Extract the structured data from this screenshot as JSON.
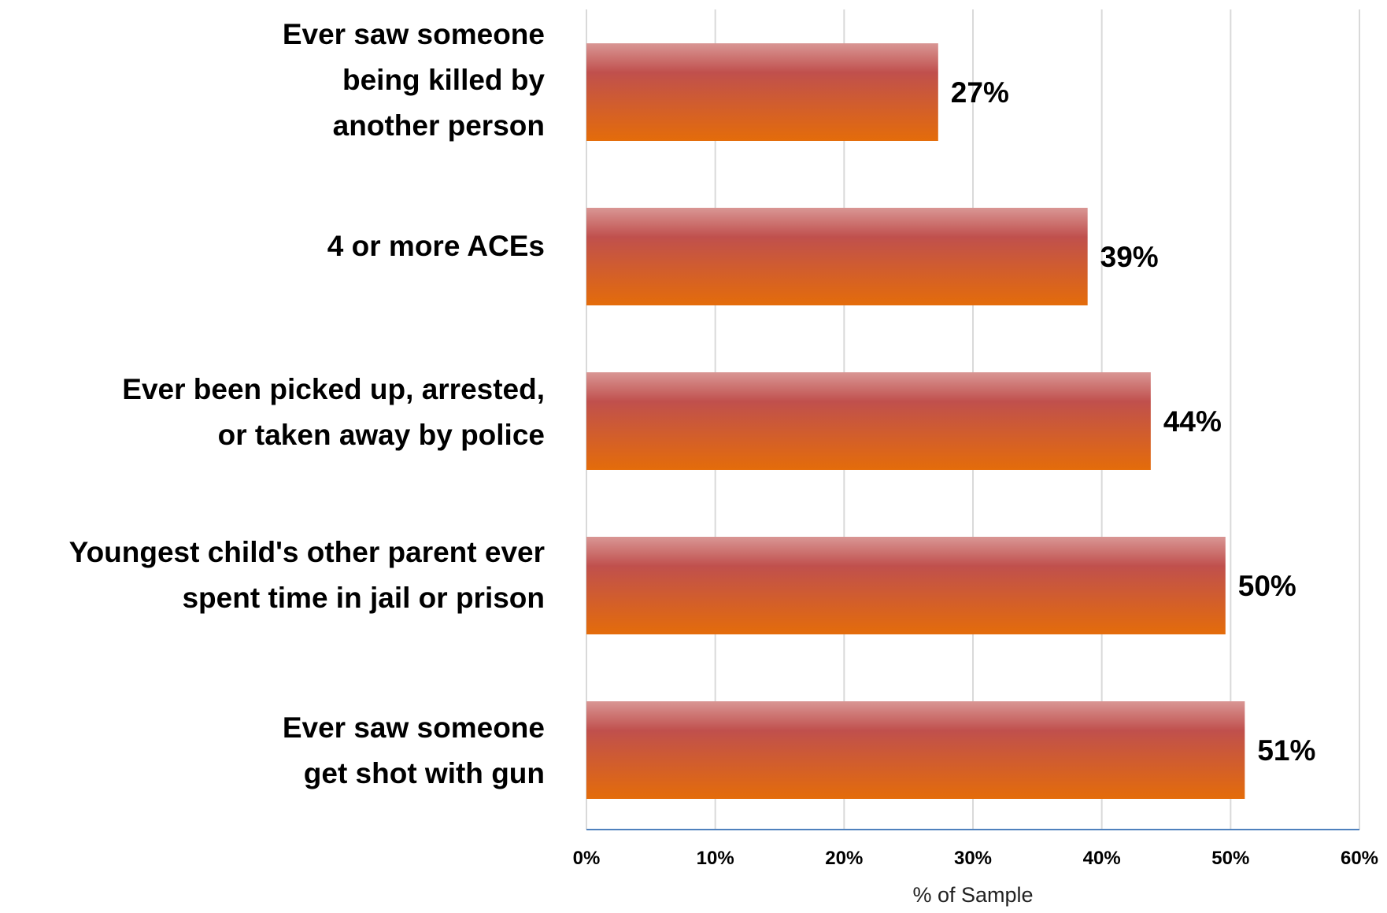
{
  "chart_data": {
    "type": "bar",
    "orientation": "horizontal",
    "categories": [
      [
        "Ever saw someone",
        "being killed by",
        "another person"
      ],
      [
        "4 or more ACEs"
      ],
      [
        "Ever been picked up, arrested,",
        "or taken away by police"
      ],
      [
        "Youngest child's other parent ever",
        "spent time in jail or prison"
      ],
      [
        "Ever saw someone",
        "get shot with gun"
      ]
    ],
    "values": [
      27.3,
      38.9,
      43.8,
      49.6,
      51.1
    ],
    "data_labels": [
      "27%",
      "39%",
      "44%",
      "50%",
      "51%"
    ],
    "xlim": [
      0,
      60
    ],
    "xticks": [
      0,
      10,
      20,
      30,
      40,
      50,
      60
    ],
    "xtick_labels": [
      "0%",
      "10%",
      "20%",
      "30%",
      "40%",
      "50%",
      "60%"
    ],
    "xlabel": "% of Sample",
    "grid": "vertical",
    "bar_colors": {
      "top": "#d99694",
      "mid": "#c0504d",
      "bottom": "#e46c0a"
    },
    "gridline_color": "#d9d9d9",
    "axis_color": "#4f81bd"
  }
}
